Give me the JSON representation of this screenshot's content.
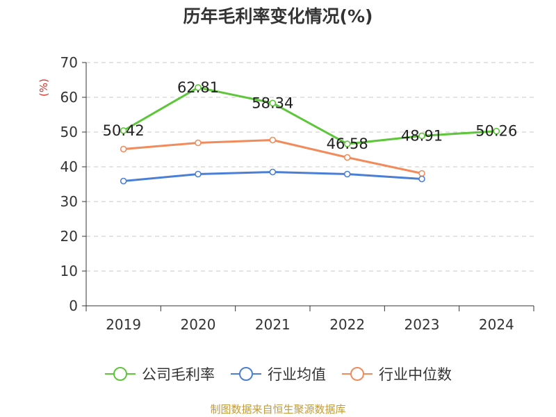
{
  "chart_data": {
    "type": "line",
    "title": "历年毛利率变化情况(%)",
    "ylabel": "(%)",
    "xlabel": "",
    "categories": [
      "2019",
      "2020",
      "2021",
      "2022",
      "2023",
      "2024"
    ],
    "ylim": [
      0,
      70
    ],
    "yticks": [
      0,
      10,
      20,
      30,
      40,
      50,
      60,
      70
    ],
    "grid": true,
    "legend_position": "bottom",
    "series": [
      {
        "name": "公司毛利率",
        "color": "#5ec63a",
        "values": [
          50.42,
          62.81,
          58.34,
          46.58,
          48.91,
          50.26
        ],
        "labels": [
          "50.42",
          "62.81",
          "58.34",
          "46.58",
          "48.91",
          "50.26"
        ]
      },
      {
        "name": "行业均值",
        "color": "#4a7fd6",
        "values": [
          35.9,
          37.9,
          38.5,
          37.9,
          36.5,
          null
        ],
        "labels": []
      },
      {
        "name": "行业中位数",
        "color": "#f28b5c",
        "values": [
          45.1,
          46.9,
          47.7,
          42.7,
          38.1,
          null
        ],
        "labels": []
      }
    ]
  },
  "source_note": "制图数据来自恒生聚源数据库"
}
